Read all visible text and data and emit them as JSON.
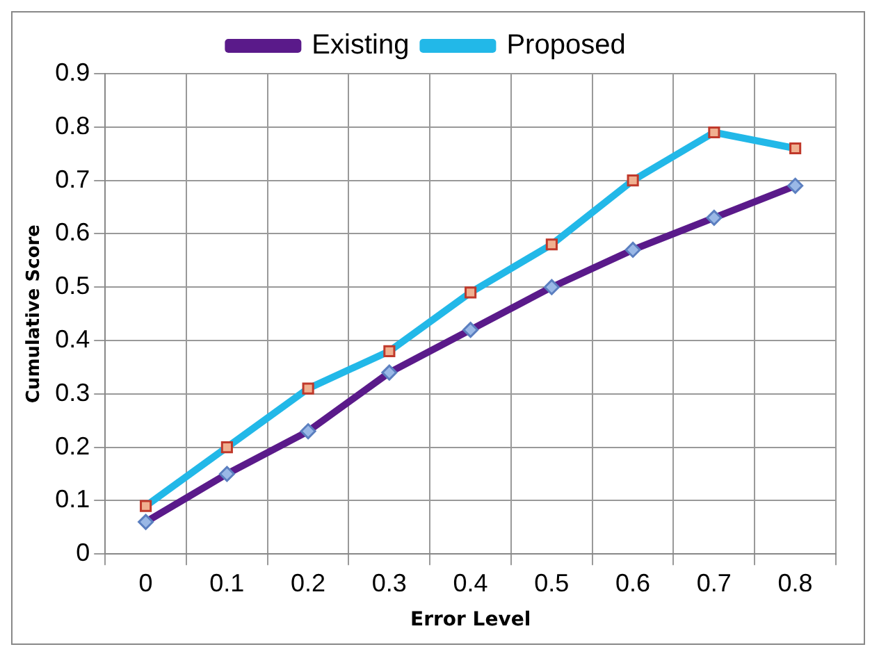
{
  "chart_data": {
    "type": "line",
    "xlabel": "Error Level",
    "ylabel": "Cumulative Score",
    "categories": [
      "0",
      "0.1",
      "0.2",
      "0.3",
      "0.4",
      "0.5",
      "0.6",
      "0.7",
      "0.8"
    ],
    "series": [
      {
        "name": "Existing",
        "color": "#5a1a8a",
        "marker": "diamond",
        "values": [
          0.06,
          0.15,
          0.23,
          0.34,
          0.42,
          0.5,
          0.57,
          0.63,
          0.69
        ]
      },
      {
        "name": "Proposed",
        "color": "#22b8e8",
        "marker": "square",
        "values": [
          0.09,
          0.2,
          0.31,
          0.38,
          0.49,
          0.58,
          0.7,
          0.79,
          0.76
        ]
      }
    ],
    "ylim": [
      0,
      0.9
    ],
    "yticks": [
      0,
      0.1,
      0.2,
      0.3,
      0.4,
      0.5,
      0.6,
      0.7,
      0.8,
      0.9
    ],
    "grid": true,
    "legend": "top"
  }
}
